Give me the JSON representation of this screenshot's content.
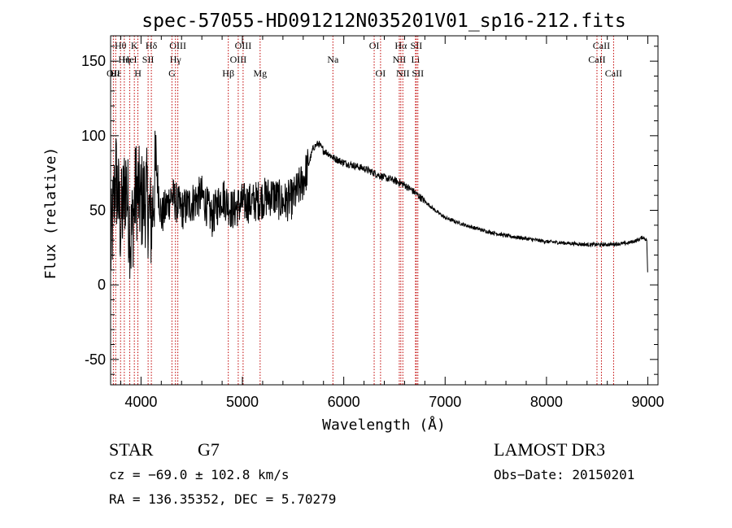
{
  "chart_data": {
    "type": "line",
    "title": "spec-57055-HD091212N035201V01_sp16-212.fits",
    "xlabel": "Wavelength (Å)",
    "ylabel": "Flux (relative)",
    "xlim": [
      3700,
      9100
    ],
    "ylim": [
      -67,
      167
    ],
    "xticks": [
      4000,
      5000,
      6000,
      7000,
      8000,
      9000
    ],
    "yticks": [
      -50,
      0,
      50,
      100,
      150
    ],
    "grid": false,
    "series": [
      {
        "name": "spectrum",
        "x": [
          3700,
          3750,
          3800,
          3850,
          3900,
          3950,
          4000,
          4050,
          4100,
          4150,
          4200,
          4300,
          4400,
          4500,
          4600,
          4700,
          4800,
          4900,
          5000,
          5100,
          5200,
          5300,
          5400,
          5500,
          5600,
          5650,
          5700,
          5750,
          5800,
          5850,
          5900,
          6000,
          6100,
          6200,
          6300,
          6400,
          6500,
          6600,
          6700,
          6800,
          6900,
          7000,
          7200,
          7400,
          7600,
          7800,
          8000,
          8200,
          8400,
          8600,
          8800,
          8900,
          8950,
          8990,
          9000
        ],
        "y": [
          20,
          75,
          40,
          70,
          30,
          65,
          55,
          60,
          40,
          80,
          45,
          60,
          50,
          55,
          60,
          45,
          60,
          50,
          55,
          55,
          58,
          60,
          55,
          58,
          70,
          80,
          92,
          95,
          90,
          88,
          85,
          82,
          80,
          78,
          75,
          72,
          70,
          67,
          62,
          56,
          50,
          45,
          40,
          36,
          33,
          31,
          29,
          28,
          27,
          27,
          28,
          30,
          32,
          30,
          2
        ]
      }
    ],
    "spectral_lines": [
      {
        "label": "Hθ",
        "x": 3798,
        "row": 1
      },
      {
        "label": "OII",
        "x": 3727,
        "row": 3
      },
      {
        "label": "Hε",
        "x": 3750,
        "row": 3
      },
      {
        "label": "Hη",
        "x": 3835,
        "row": 2
      },
      {
        "label": "HeI",
        "x": 3889,
        "row": 2
      },
      {
        "label": "SII",
        "x": 4070,
        "row": 2
      },
      {
        "label": "K",
        "x": 3934,
        "row": 1
      },
      {
        "label": "H",
        "x": 3969,
        "row": 3
      },
      {
        "label": "Hδ",
        "x": 4102,
        "row": 1
      },
      {
        "label": "OIII",
        "x": 4363,
        "row": 1
      },
      {
        "label": "Hγ",
        "x": 4340,
        "row": 2
      },
      {
        "label": "G",
        "x": 4305,
        "row": 3
      },
      {
        "label": "Hβ",
        "x": 4861,
        "row": 3
      },
      {
        "label": "OIII",
        "x": 4959,
        "row": 2
      },
      {
        "label": "OIII",
        "x": 5007,
        "row": 1
      },
      {
        "label": "Mg",
        "x": 5175,
        "row": 3
      },
      {
        "label": "Na",
        "x": 5893,
        "row": 2
      },
      {
        "label": "OI",
        "x": 6300,
        "row": 1
      },
      {
        "label": "OI",
        "x": 6363,
        "row": 3
      },
      {
        "label": "NII",
        "x": 6548,
        "row": 2
      },
      {
        "label": "Hα",
        "x": 6563,
        "row": 1
      },
      {
        "label": "NII",
        "x": 6583,
        "row": 3
      },
      {
        "label": "Li",
        "x": 6708,
        "row": 2
      },
      {
        "label": "SII",
        "x": 6716,
        "row": 1
      },
      {
        "label": "SII",
        "x": 6731,
        "row": 3
      },
      {
        "label": "CaII",
        "x": 8498,
        "row": 2
      },
      {
        "label": "CaII",
        "x": 8542,
        "row": 1
      },
      {
        "label": "CaII",
        "x": 8662,
        "row": 3
      }
    ]
  },
  "info": {
    "object_class": "STAR",
    "subclass": "G7",
    "survey": "LAMOST DR3",
    "redshift": "cz = −69.0 ± 102.8 km/s",
    "obs_date": "Obs−Date: 20150201",
    "coords": "RA = 136.35352, DEC =    5.70279"
  }
}
